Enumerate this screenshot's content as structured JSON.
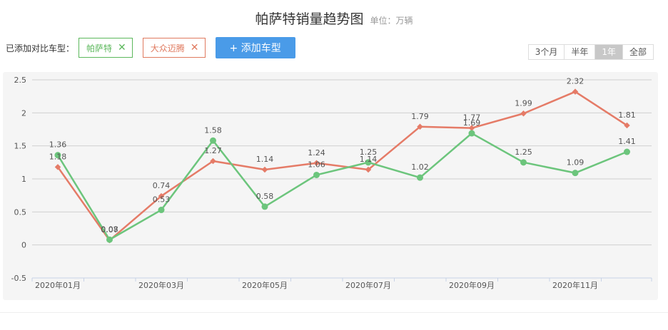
{
  "header": {
    "title": "帕萨特销量趋势图",
    "unit": "单位：万辆"
  },
  "toolbar": {
    "label": "已添加对比车型：",
    "tags": [
      {
        "label": "帕萨特",
        "color": "#5cb85c"
      },
      {
        "label": "大众迈腾",
        "color": "#e07a5f"
      }
    ],
    "add_button": "+ 添加车型",
    "add_button_color": "#4a9be8"
  },
  "periods": {
    "options": [
      "3个月",
      "半年",
      "1年",
      "全部"
    ],
    "active_index": 2
  },
  "chart_data": {
    "type": "line",
    "x": [
      "2020年01月",
      "2020年02月",
      "2020年03月",
      "2020年04月",
      "2020年05月",
      "2020年06月",
      "2020年07月",
      "2020年08月",
      "2020年09月",
      "2020年10月",
      "2020年11月",
      "2020年12月"
    ],
    "tick_labels": [
      "2020年01月",
      "",
      "2020年03月",
      "",
      "2020年05月",
      "",
      "2020年07月",
      "",
      "2020年09月",
      "",
      "2020年11月",
      ""
    ],
    "yticks": [
      2.5,
      2,
      1.5,
      1,
      0.5,
      0,
      -0.5
    ],
    "ylim": [
      -0.5,
      2.5
    ],
    "grid": true,
    "series": [
      {
        "name": "帕萨特",
        "color": "#6cc57c",
        "values": [
          1.36,
          0.08,
          0.53,
          1.58,
          0.58,
          1.06,
          1.25,
          1.02,
          1.69,
          1.25,
          1.09,
          1.41
        ]
      },
      {
        "name": "大众迈腾",
        "color": "#e57b67",
        "values": [
          1.18,
          0.07,
          0.74,
          1.27,
          1.14,
          1.24,
          1.14,
          1.79,
          1.77,
          1.99,
          2.32,
          1.81
        ]
      }
    ]
  }
}
